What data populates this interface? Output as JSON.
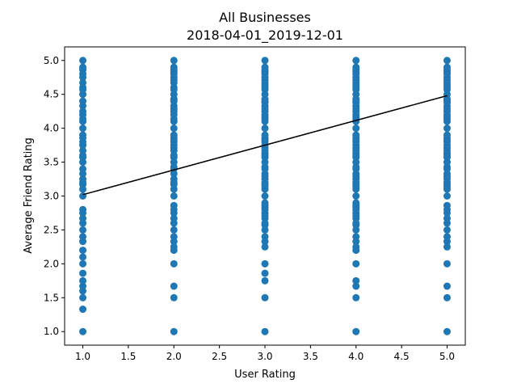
{
  "chart_data": {
    "type": "scatter",
    "title": "All Businesses",
    "subtitle": "2018-04-01_2019-12-01",
    "xlabel": "User Rating",
    "ylabel": "Average Friend Rating",
    "xlim": [
      0.8,
      5.2
    ],
    "ylim": [
      0.8,
      5.2
    ],
    "x_ticks": [
      "1.0",
      "1.5",
      "2.0",
      "2.5",
      "3.0",
      "3.5",
      "4.0",
      "4.5",
      "5.0"
    ],
    "y_ticks": [
      "1.0",
      "1.5",
      "2.0",
      "2.5",
      "3.0",
      "3.5",
      "4.0",
      "4.5",
      "5.0"
    ],
    "grid": false,
    "point_color": "#1f77b4",
    "line_color": "#000000",
    "series": [
      {
        "x": 1.0,
        "y": [
          1.0,
          1.33,
          1.5,
          1.6,
          1.67,
          1.75,
          1.86,
          2.0,
          2.1,
          2.2,
          2.33,
          2.4,
          2.5,
          2.6,
          2.67,
          2.75,
          2.8,
          3.0,
          3.1,
          3.17,
          3.2,
          3.25,
          3.33,
          3.4,
          3.5,
          3.57,
          3.6,
          3.67,
          3.75,
          3.8,
          3.86,
          3.9,
          4.0,
          4.1,
          4.14,
          4.2,
          4.25,
          4.33,
          4.4,
          4.5,
          4.57,
          4.6,
          4.67,
          4.75,
          4.8,
          4.86,
          4.9,
          5.0
        ]
      },
      {
        "x": 2.0,
        "y": [
          1.0,
          1.5,
          1.67,
          2.0,
          2.2,
          2.25,
          2.33,
          2.4,
          2.5,
          2.6,
          2.67,
          2.75,
          2.8,
          2.86,
          3.0,
          3.1,
          3.17,
          3.2,
          3.25,
          3.33,
          3.4,
          3.43,
          3.5,
          3.57,
          3.6,
          3.67,
          3.71,
          3.75,
          3.8,
          3.83,
          3.86,
          3.9,
          4.0,
          4.1,
          4.14,
          4.2,
          4.25,
          4.29,
          4.33,
          4.4,
          4.43,
          4.5,
          4.57,
          4.6,
          4.67,
          4.71,
          4.75,
          4.8,
          4.83,
          4.86,
          4.9,
          5.0
        ]
      },
      {
        "x": 3.0,
        "y": [
          1.0,
          1.5,
          1.75,
          1.86,
          2.0,
          2.25,
          2.33,
          2.4,
          2.5,
          2.57,
          2.6,
          2.67,
          2.71,
          2.75,
          2.8,
          2.83,
          2.86,
          2.9,
          3.0,
          3.1,
          3.14,
          3.17,
          3.2,
          3.25,
          3.29,
          3.33,
          3.4,
          3.43,
          3.5,
          3.57,
          3.6,
          3.63,
          3.67,
          3.71,
          3.75,
          3.8,
          3.83,
          3.86,
          3.9,
          4.0,
          4.1,
          4.14,
          4.17,
          4.2,
          4.25,
          4.29,
          4.33,
          4.38,
          4.4,
          4.43,
          4.5,
          4.57,
          4.6,
          4.63,
          4.67,
          4.71,
          4.75,
          4.8,
          4.83,
          4.86,
          4.9,
          5.0
        ]
      },
      {
        "x": 4.0,
        "y": [
          1.0,
          1.5,
          1.67,
          1.75,
          2.0,
          2.2,
          2.25,
          2.33,
          2.4,
          2.5,
          2.57,
          2.6,
          2.67,
          2.71,
          2.75,
          2.8,
          2.83,
          2.86,
          2.9,
          3.0,
          3.1,
          3.14,
          3.17,
          3.2,
          3.25,
          3.29,
          3.33,
          3.4,
          3.43,
          3.5,
          3.57,
          3.6,
          3.63,
          3.67,
          3.71,
          3.75,
          3.8,
          3.83,
          3.86,
          3.9,
          4.0,
          4.1,
          4.14,
          4.17,
          4.2,
          4.25,
          4.29,
          4.33,
          4.38,
          4.4,
          4.43,
          4.5,
          4.57,
          4.6,
          4.63,
          4.67,
          4.71,
          4.75,
          4.8,
          4.83,
          4.86,
          4.9,
          5.0
        ]
      },
      {
        "x": 5.0,
        "y": [
          1.0,
          1.5,
          1.67,
          2.0,
          2.25,
          2.33,
          2.4,
          2.5,
          2.6,
          2.67,
          2.75,
          2.8,
          2.86,
          3.0,
          3.1,
          3.14,
          3.17,
          3.2,
          3.25,
          3.29,
          3.33,
          3.4,
          3.43,
          3.5,
          3.57,
          3.6,
          3.63,
          3.67,
          3.71,
          3.75,
          3.8,
          3.83,
          3.86,
          3.9,
          4.0,
          4.1,
          4.14,
          4.17,
          4.2,
          4.25,
          4.29,
          4.33,
          4.38,
          4.4,
          4.43,
          4.5,
          4.57,
          4.6,
          4.63,
          4.67,
          4.71,
          4.75,
          4.8,
          4.83,
          4.86,
          4.9,
          5.0
        ]
      }
    ],
    "trend_line": {
      "x": [
        1.0,
        5.0
      ],
      "y": [
        3.02,
        4.48
      ]
    }
  }
}
